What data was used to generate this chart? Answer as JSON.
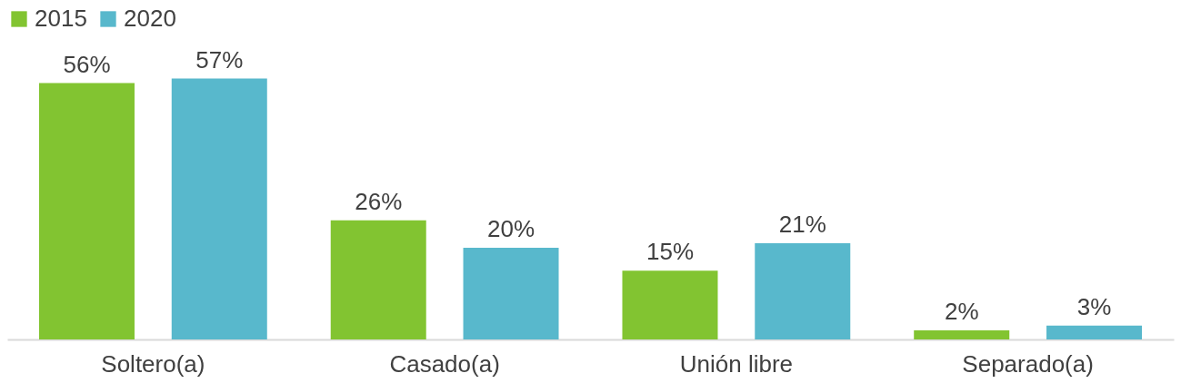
{
  "chart_data": {
    "type": "bar",
    "categories": [
      "Soltero(a)",
      "Casado(a)",
      "Unión libre",
      "Separado(a)"
    ],
    "series": [
      {
        "name": "2015",
        "color": "#82c431",
        "values": [
          56,
          26,
          15,
          2
        ],
        "value_labels": [
          "56%",
          "26%",
          "15%",
          "2%"
        ]
      },
      {
        "name": "2020",
        "color": "#58b8cc",
        "values": [
          57,
          20,
          21,
          3
        ],
        "value_labels": [
          "57%",
          "20%",
          "21%",
          "3%"
        ]
      }
    ],
    "legend": "top",
    "grid": false
  }
}
